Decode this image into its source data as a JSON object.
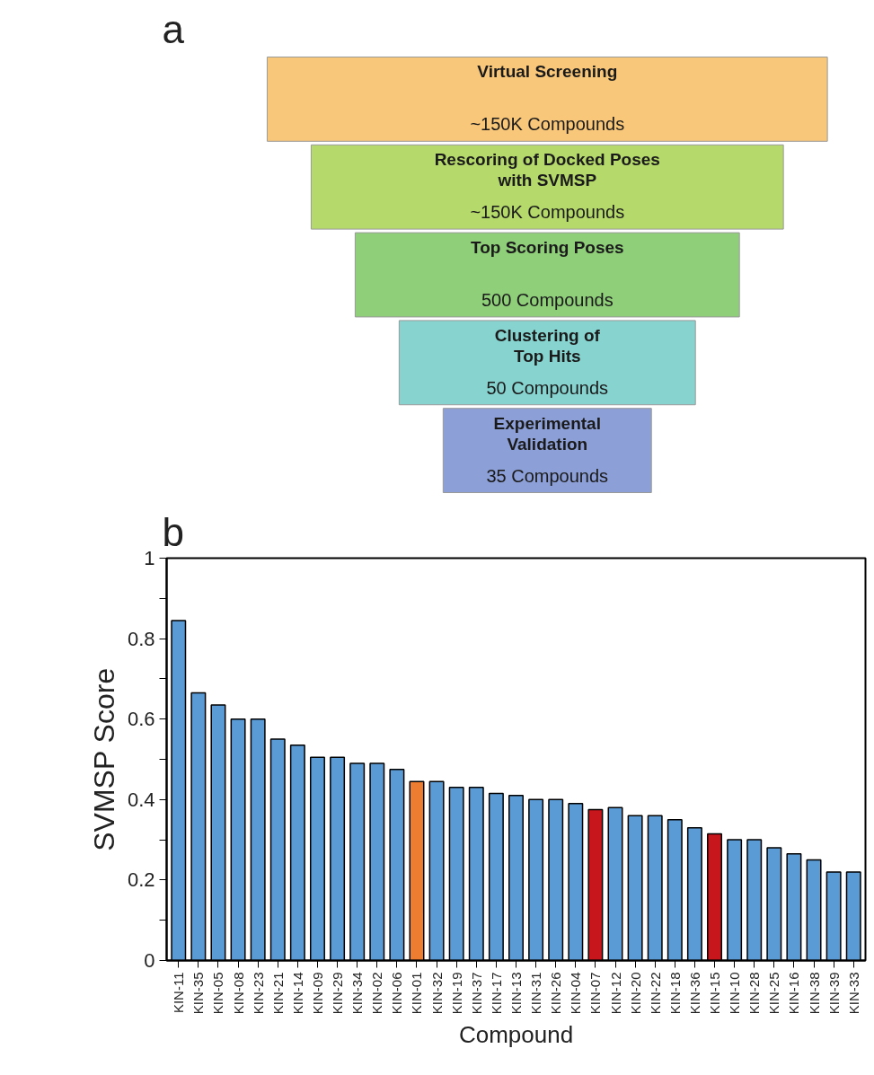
{
  "chart_data": [
    {
      "type": "other",
      "annotations": [
        "a"
      ],
      "categories": [
        "Virtual Screening",
        "Rescoring of Docked Poses\nwith SVMSP",
        "Top Scoring Poses",
        "Clustering of\nTop Hits",
        "Experimental\nValidation"
      ],
      "value_labels": [
        "~150K Compounds",
        "~150K Compounds",
        "500 Compounds",
        "50 Compounds",
        "35 Compounds"
      ],
      "colors": [
        "#f9c77a",
        "#b5d96b",
        "#8fcf7a",
        "#86d3cf",
        "#8c9fd6"
      ]
    },
    {
      "type": "bar",
      "annotations": [
        "b"
      ],
      "xlabel": "Compound",
      "ylabel": "SVMSP Score",
      "categories": [
        "KIN-11",
        "KIN-35",
        "KIN-05",
        "KIN-08",
        "KIN-23",
        "KIN-21",
        "KIN-14",
        "KIN-09",
        "KIN-29",
        "KIN-34",
        "KIN-02",
        "KIN-06",
        "KIN-01",
        "KIN-32",
        "KIN-19",
        "KIN-37",
        "KIN-17",
        "KIN-13",
        "KIN-31",
        "KIN-26",
        "KIN-04",
        "KIN-07",
        "KIN-12",
        "KIN-20",
        "KIN-22",
        "KIN-18",
        "KIN-36",
        "KIN-15",
        "KIN-10",
        "KIN-28",
        "KIN-25",
        "KIN-16",
        "KIN-38",
        "KIN-39",
        "KIN-33"
      ],
      "values": [
        0.845,
        0.665,
        0.635,
        0.6,
        0.6,
        0.55,
        0.535,
        0.505,
        0.505,
        0.49,
        0.49,
        0.475,
        0.445,
        0.445,
        0.43,
        0.43,
        0.415,
        0.41,
        0.4,
        0.4,
        0.39,
        0.375,
        0.38,
        0.36,
        0.36,
        0.35,
        0.33,
        0.315,
        0.3,
        0.3,
        0.28,
        0.265,
        0.25,
        0.22,
        0.22
      ],
      "colors": [
        "#5b9bd5",
        "#5b9bd5",
        "#5b9bd5",
        "#5b9bd5",
        "#5b9bd5",
        "#5b9bd5",
        "#5b9bd5",
        "#5b9bd5",
        "#5b9bd5",
        "#5b9bd5",
        "#5b9bd5",
        "#5b9bd5",
        "#ed7d31",
        "#5b9bd5",
        "#5b9bd5",
        "#5b9bd5",
        "#5b9bd5",
        "#5b9bd5",
        "#5b9bd5",
        "#5b9bd5",
        "#5b9bd5",
        "#c8161d",
        "#5b9bd5",
        "#5b9bd5",
        "#5b9bd5",
        "#5b9bd5",
        "#5b9bd5",
        "#c8161d",
        "#5b9bd5",
        "#5b9bd5",
        "#5b9bd5",
        "#5b9bd5",
        "#5b9bd5",
        "#5b9bd5",
        "#5b9bd5"
      ],
      "ylim": [
        0,
        1
      ],
      "yticks": [
        0,
        {
          "value": 0.1,
          "label": null
        },
        0.2,
        {
          "value": 0.3,
          "label": null
        },
        0.4,
        {
          "value": 0.5,
          "label": null
        },
        0.6,
        {
          "value": 0.7,
          "label": null
        },
        0.8,
        {
          "value": 0.9,
          "label": null
        },
        1
      ],
      "grid": false
    }
  ]
}
